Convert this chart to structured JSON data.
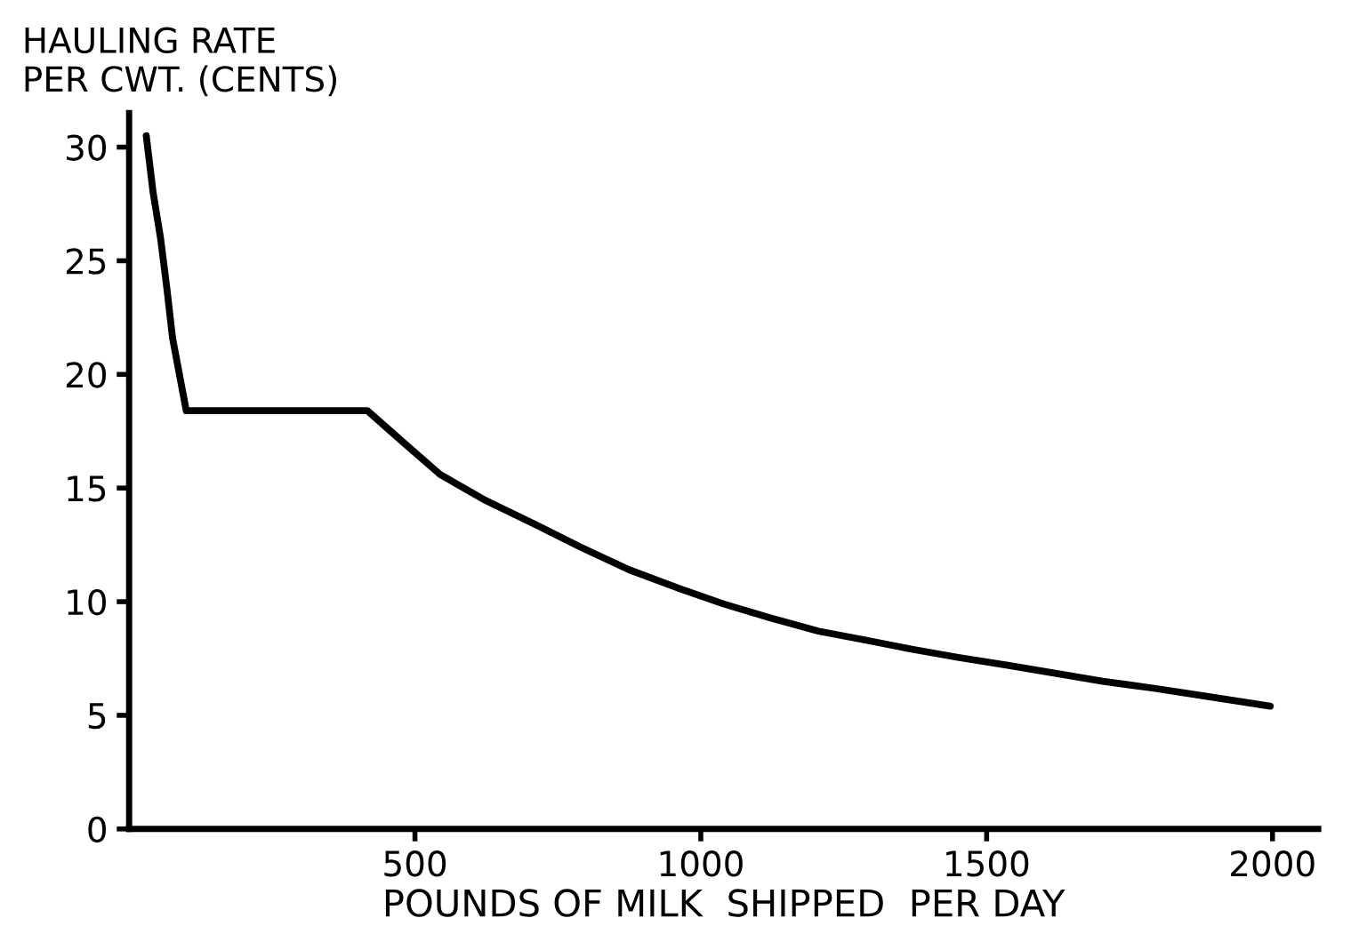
{
  "chart_data": {
    "type": "line",
    "ylabel": "HAULING RATE\nPER CWT. (CENTS)",
    "xlabel": "POUNDS OF MILK  SHIPPED  PER DAY",
    "series": [
      {
        "color": "#000000",
        "x": [
          30,
          42,
          55,
          66,
          76,
          100,
          250,
          417,
          480,
          544,
          620,
          710,
          790,
          875,
          960,
          1040,
          1120,
          1206,
          1290,
          1371,
          1450,
          1537,
          1620,
          1703,
          1790,
          1868,
          1996
        ],
        "values": [
          30.5,
          28.0,
          26.0,
          23.8,
          21.6,
          18.4,
          18.4,
          18.4,
          17.0,
          15.6,
          14.5,
          13.4,
          12.4,
          11.4,
          10.6,
          9.9,
          9.3,
          8.7,
          8.3,
          7.9,
          7.55,
          7.2,
          6.85,
          6.5,
          6.2,
          5.9,
          5.4
        ]
      }
    ],
    "xlim": [
      0,
      2080
    ],
    "xticks": [
      500,
      1000,
      1500,
      2000
    ],
    "ylim": [
      0,
      31.5
    ],
    "yticks": [
      0,
      5,
      10,
      15,
      20,
      25,
      30
    ],
    "grid": false,
    "legend": false,
    "marker": "none",
    "line_style": "solid"
  }
}
